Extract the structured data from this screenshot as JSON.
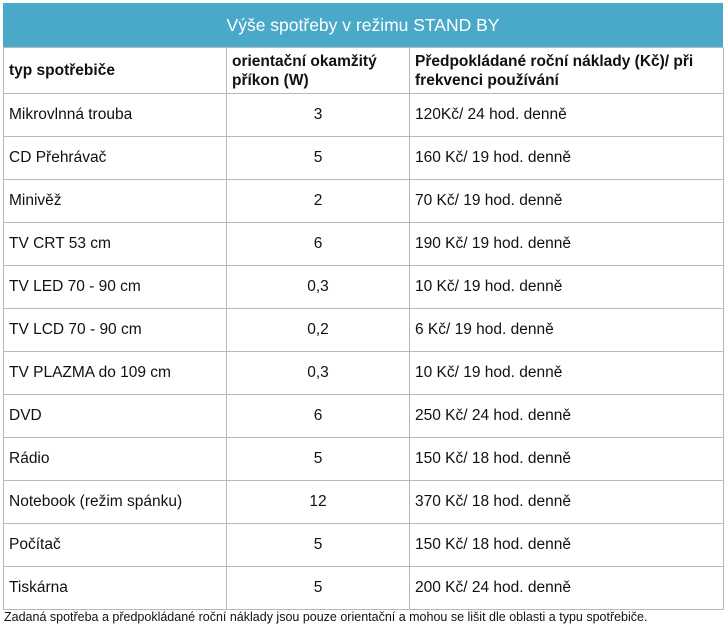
{
  "table": {
    "title": "Výše spotřeby v režimu STAND BY",
    "header": [
      "typ spotřebiče",
      "orientační okamžitý příkon (W)",
      "Předpokládané roční náklady (Kč)/ při frekvenci používání"
    ],
    "rows": [
      [
        "Mikrovlnná trouba",
        "3",
        "120Kč/ 24 hod. denně"
      ],
      [
        "CD Přehrávač",
        "5",
        "160 Kč/ 19 hod. denně"
      ],
      [
        "Minivěž",
        "2",
        "70 Kč/ 19 hod. denně"
      ],
      [
        "TV CRT 53 cm",
        "6",
        "190 Kč/ 19 hod. denně"
      ],
      [
        "TV LED 70 - 90 cm",
        "0,3",
        "10 Kč/ 19 hod. denně"
      ],
      [
        "TV LCD 70 - 90 cm",
        "0,2",
        "6 Kč/ 19 hod. denně"
      ],
      [
        "TV PLAZMA do 109 cm",
        "0,3",
        "10 Kč/ 19 hod. denně"
      ],
      [
        "DVD",
        "6",
        "250 Kč/ 24 hod. denně"
      ],
      [
        "Rádio",
        "5",
        "150 Kč/ 18 hod. denně"
      ],
      [
        "Notebook (režim spánku)",
        "12",
        "370 Kč/ 18 hod. denně"
      ],
      [
        "Počítač",
        "5",
        "150 Kč/ 18 hod. denně"
      ],
      [
        "Tiskárna",
        "5",
        "200 Kč/ 24 hod. denně"
      ]
    ],
    "footnote": "Zadaná spotřeba a předpokládané roční náklady jsou pouze orientační a mohou se lišit dle oblasti a typu spotřebiče."
  }
}
